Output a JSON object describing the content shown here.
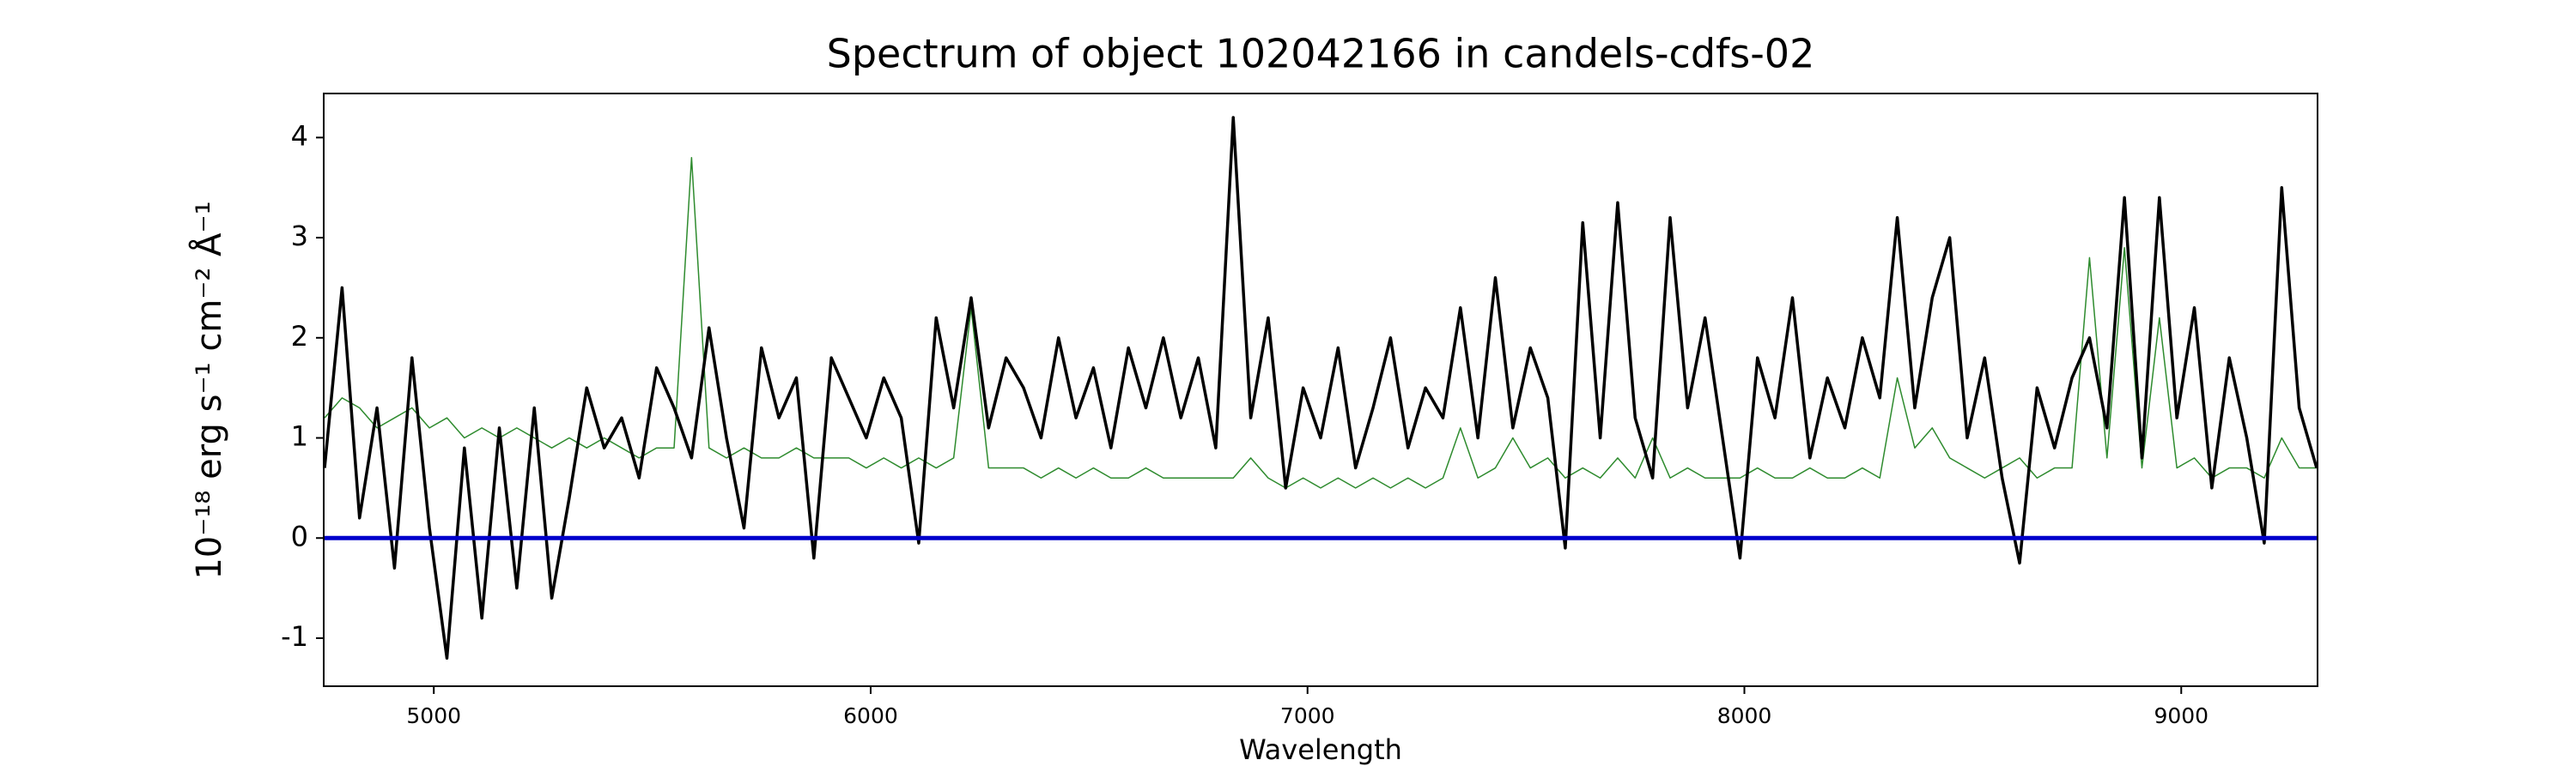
{
  "chart_data": {
    "type": "line",
    "title": "Spectrum of object 102042166 in candels-cdfs-02",
    "xlabel": "Wavelength",
    "ylabel": "10⁻¹⁸ erg s⁻¹ cm⁻² Å⁻¹",
    "x": [
      4750,
      4790,
      4830,
      4870,
      4910,
      4950,
      4990,
      5030,
      5070,
      5110,
      5150,
      5190,
      5230,
      5270,
      5310,
      5350,
      5390,
      5430,
      5470,
      5510,
      5550,
      5590,
      5630,
      5670,
      5710,
      5750,
      5790,
      5830,
      5870,
      5910,
      5950,
      5990,
      6030,
      6070,
      6110,
      6150,
      6190,
      6230,
      6270,
      6310,
      6350,
      6390,
      6430,
      6470,
      6510,
      6550,
      6590,
      6630,
      6670,
      6710,
      6750,
      6790,
      6830,
      6870,
      6910,
      6950,
      6990,
      7030,
      7070,
      7110,
      7150,
      7190,
      7230,
      7270,
      7310,
      7350,
      7390,
      7430,
      7470,
      7510,
      7550,
      7590,
      7630,
      7670,
      7710,
      7750,
      7790,
      7830,
      7870,
      7910,
      7950,
      7990,
      8030,
      8070,
      8110,
      8150,
      8190,
      8230,
      8270,
      8310,
      8350,
      8390,
      8430,
      8470,
      8510,
      8550,
      8590,
      8630,
      8670,
      8710,
      8750,
      8790,
      8830,
      8870,
      8910,
      8950,
      8990,
      9030,
      9070,
      9110,
      9150,
      9190,
      9230,
      9270,
      9310
    ],
    "series": [
      {
        "color": "#2e8b2e",
        "width": 1.5,
        "values": [
          1.2,
          1.4,
          1.3,
          1.1,
          1.2,
          1.3,
          1.1,
          1.2,
          1.0,
          1.1,
          1.0,
          1.1,
          1.0,
          0.9,
          1.0,
          0.9,
          1.0,
          0.9,
          0.8,
          0.9,
          0.9,
          3.8,
          0.9,
          0.8,
          0.9,
          0.8,
          0.8,
          0.9,
          0.8,
          0.8,
          0.8,
          0.7,
          0.8,
          0.7,
          0.8,
          0.7,
          0.8,
          2.3,
          0.7,
          0.7,
          0.7,
          0.6,
          0.7,
          0.6,
          0.7,
          0.6,
          0.6,
          0.7,
          0.6,
          0.6,
          0.6,
          0.6,
          0.6,
          0.8,
          0.6,
          0.5,
          0.6,
          0.5,
          0.6,
          0.5,
          0.6,
          0.5,
          0.6,
          0.5,
          0.6,
          1.1,
          0.6,
          0.7,
          1.0,
          0.7,
          0.8,
          0.6,
          0.7,
          0.6,
          0.8,
          0.6,
          1.0,
          0.6,
          0.7,
          0.6,
          0.6,
          0.6,
          0.7,
          0.6,
          0.6,
          0.7,
          0.6,
          0.6,
          0.7,
          0.6,
          1.6,
          0.9,
          1.1,
          0.8,
          0.7,
          0.6,
          0.7,
          0.8,
          0.6,
          0.7,
          0.7,
          2.8,
          0.8,
          2.9,
          0.7,
          2.2,
          0.7,
          0.8,
          0.6,
          0.7,
          0.7,
          0.6,
          1.0,
          0.7,
          0.7
        ]
      },
      {
        "color": "#000000",
        "width": 3.5,
        "values": [
          0.7,
          2.5,
          0.2,
          1.3,
          -0.3,
          1.8,
          0.1,
          -1.2,
          0.9,
          -0.8,
          1.1,
          -0.5,
          1.3,
          -0.6,
          0.4,
          1.5,
          0.9,
          1.2,
          0.6,
          1.7,
          1.3,
          0.8,
          2.1,
          1.0,
          0.1,
          1.9,
          1.2,
          1.6,
          -0.2,
          1.8,
          1.4,
          1.0,
          1.6,
          1.2,
          -0.05,
          2.2,
          1.3,
          2.4,
          1.1,
          1.8,
          1.5,
          1.0,
          2.0,
          1.2,
          1.7,
          0.9,
          1.9,
          1.3,
          2.0,
          1.2,
          1.8,
          0.9,
          4.2,
          1.2,
          2.2,
          0.5,
          1.5,
          1.0,
          1.9,
          0.7,
          1.3,
          2.0,
          0.9,
          1.5,
          1.2,
          2.3,
          1.0,
          2.6,
          1.1,
          1.9,
          1.4,
          -0.1,
          3.15,
          1.0,
          3.35,
          1.2,
          0.6,
          3.2,
          1.3,
          2.2,
          1.0,
          -0.2,
          1.8,
          1.2,
          2.4,
          0.8,
          1.6,
          1.1,
          2.0,
          1.4,
          3.2,
          1.3,
          2.4,
          3.0,
          1.0,
          1.8,
          0.6,
          -0.25,
          1.5,
          0.9,
          1.6,
          2.0,
          1.1,
          3.4,
          0.8,
          3.4,
          1.2,
          2.3,
          0.5,
          1.8,
          1.0,
          -0.05,
          3.5,
          1.3,
          0.7
        ]
      }
    ],
    "hline": 0,
    "hline_color": "#0000cc",
    "xlim": [
      4748,
      9312
    ],
    "ylim": [
      -1.48,
      4.44
    ],
    "xticks": [
      5000,
      6000,
      7000,
      8000,
      9000
    ],
    "yticks": [
      -1,
      0,
      1,
      2,
      3,
      4
    ],
    "grid": false
  }
}
